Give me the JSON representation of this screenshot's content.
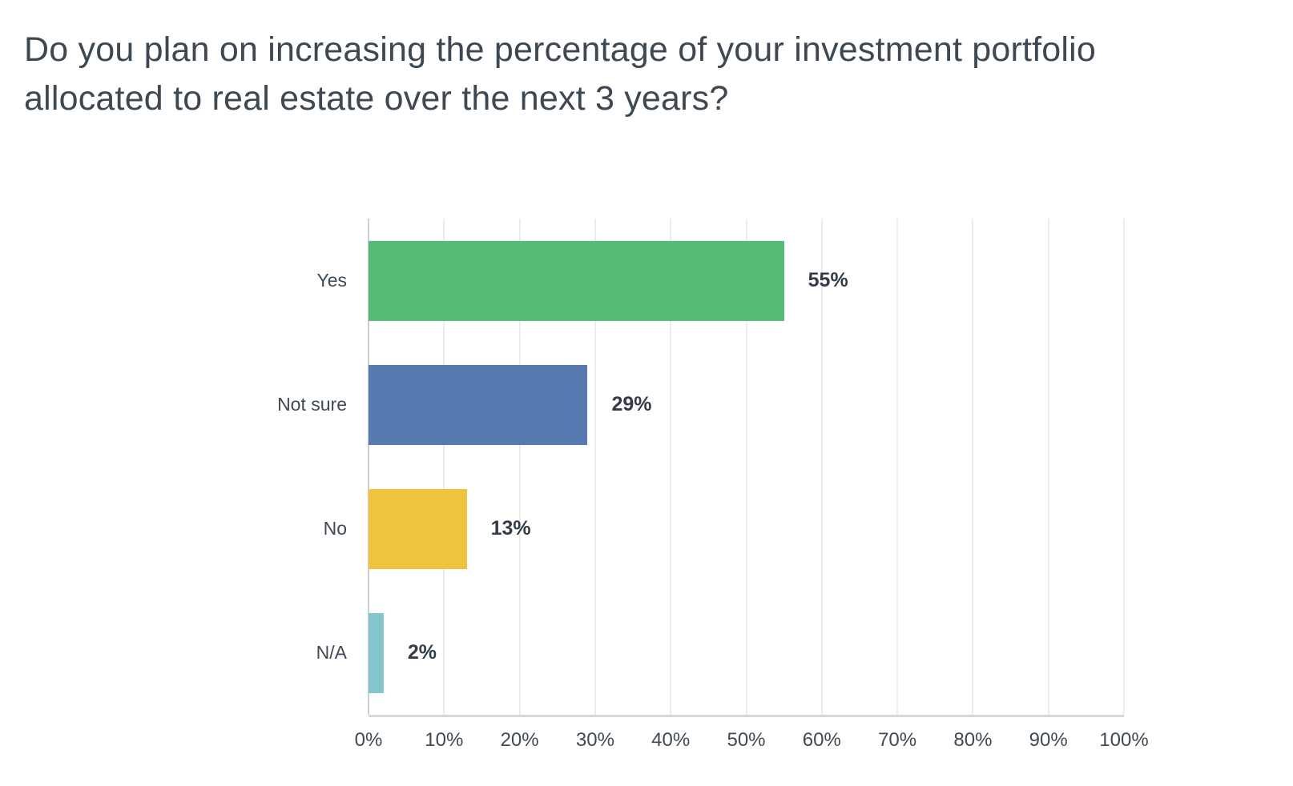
{
  "header": {
    "title_line1": "Do you plan on increasing the percentage of your investment portfolio",
    "title_line2": "allocated to real estate over the next 3 years?"
  },
  "chart_data": {
    "type": "bar",
    "orientation": "horizontal",
    "title": "Do you plan on increasing the percentage of your investment portfolio allocated to real estate over the next 3 years?",
    "categories": [
      "Yes",
      "Not sure",
      "No",
      "N/A"
    ],
    "values": [
      55,
      29,
      13,
      2
    ],
    "value_labels": [
      "55%",
      "29%",
      "13%",
      "2%"
    ],
    "bar_colors": [
      "#55bb76",
      "#577ab1",
      "#eec33e",
      "#84c5cb"
    ],
    "xlabel": "",
    "ylabel": "",
    "xlim": [
      0,
      100
    ],
    "x_ticks": [
      0,
      10,
      20,
      30,
      40,
      50,
      60,
      70,
      80,
      90,
      100
    ],
    "x_tick_labels": [
      "0%",
      "10%",
      "20%",
      "30%",
      "40%",
      "50%",
      "60%",
      "70%",
      "80%",
      "90%",
      "100%"
    ],
    "grid": "vertical-gridlines-on",
    "legend": "none",
    "title_color": "#3d4852",
    "label_color": "#3f4a54",
    "value_label_color": "#323c46",
    "gridline_color": "#ececec",
    "zero_line_color": "#cdced0",
    "axis_line_color": "#d6d8d9",
    "background_color": "#ffffff"
  }
}
